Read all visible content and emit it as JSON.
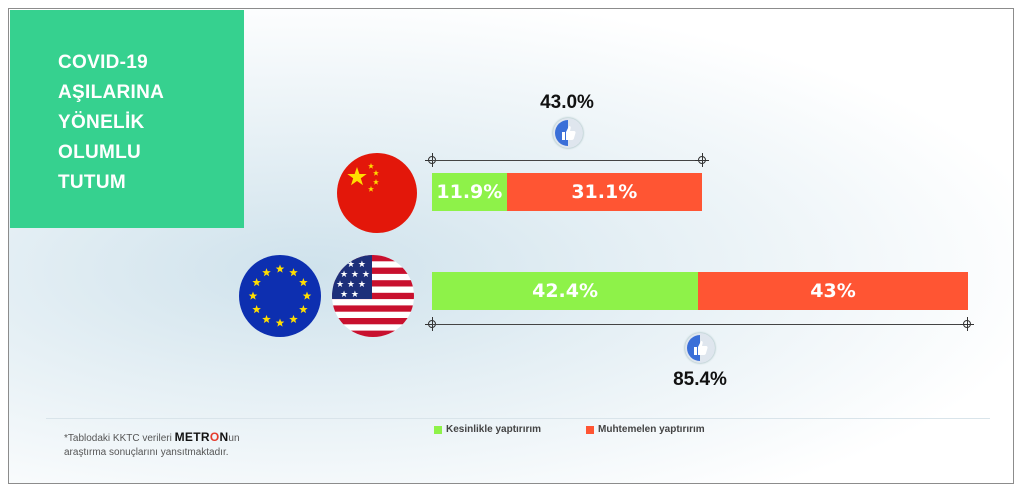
{
  "title_lines": [
    "COVID-19",
    "AŞILARINA",
    "YÖNELİK",
    "OLUMLU",
    "TUTUM"
  ],
  "colors": {
    "title_bg": "#36d18f",
    "kesinlikle": "#8ef249",
    "muhtemelen": "#ff5533"
  },
  "chart_data": {
    "type": "bar",
    "orientation": "horizontal",
    "stacked": true,
    "categories": [
      "China",
      "EU/USA"
    ],
    "series": [
      {
        "name": "Kesinlikle yaptırırım",
        "values": [
          11.9,
          42.4
        ],
        "labels": [
          "11.9%",
          "42.4%"
        ],
        "color": "#8ef249"
      },
      {
        "name": "Muhtemelen yaptırırım",
        "values": [
          31.1,
          43.0
        ],
        "labels": [
          "31.1%",
          "43%"
        ],
        "color": "#ff5533"
      }
    ],
    "totals": [
      43.0,
      85.4
    ],
    "total_labels": [
      "43.0%",
      "85.4%"
    ],
    "xlim": [
      0,
      85.4
    ],
    "legend_position": "bottom",
    "grid": false
  },
  "footnote": {
    "line1_prefix": "*Tablodaki KKTC verileri",
    "brand_a": "METR",
    "brand_o": "O",
    "brand_b": "N",
    "line1_suffix": "un",
    "line2": "araştırma sonuçlarını yansıtmaktadır."
  },
  "flags": [
    "china-flag",
    "eu-flag",
    "usa-flag"
  ]
}
